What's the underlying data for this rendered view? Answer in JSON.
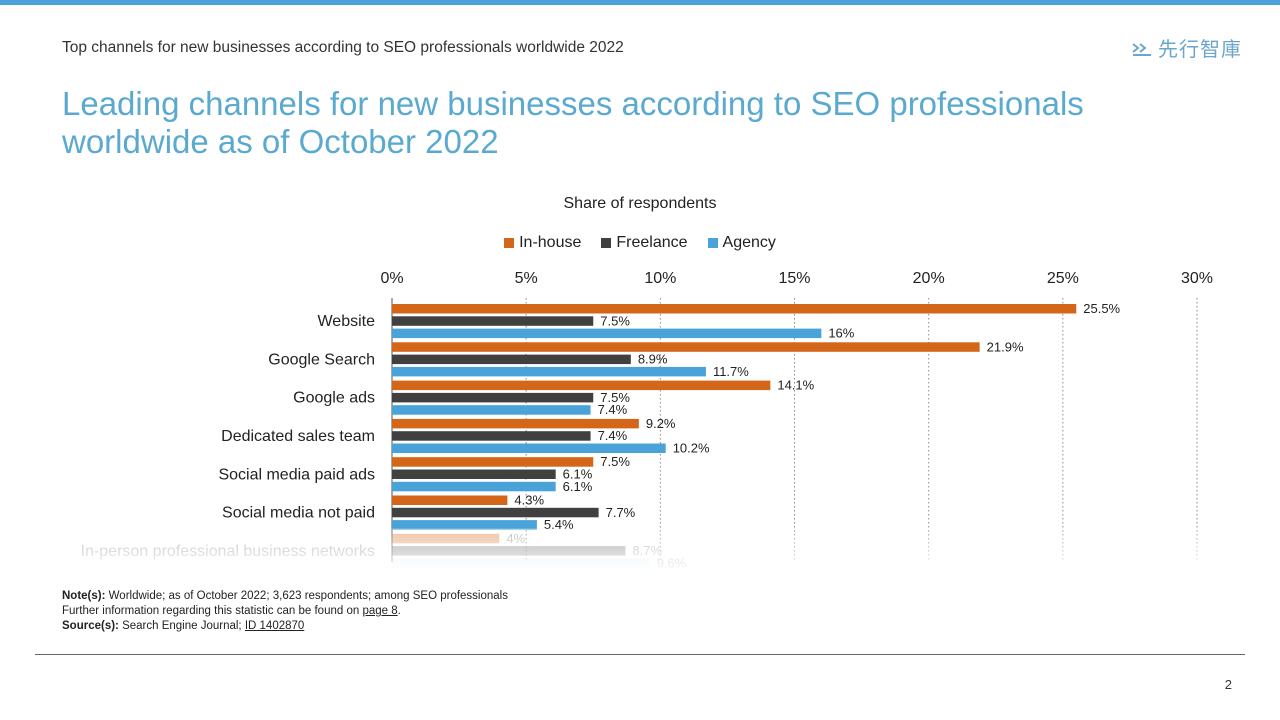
{
  "header": {
    "subtitle": "Top channels for new businesses according to SEO professionals worldwide 2022",
    "brand_text": "先行智庫",
    "brand_logo_icon": "brand-logo-icon",
    "title": "Leading channels for new businesses according to SEO professionals worldwide as of October 2022"
  },
  "chart_data": {
    "type": "bar",
    "orientation": "horizontal",
    "title": "Share of respondents",
    "categories": [
      "Website",
      "Google Search",
      "Google ads",
      "Dedicated sales team",
      "Social media paid ads",
      "Social media not paid",
      "In-person professional business networks"
    ],
    "series": [
      {
        "name": "In-house",
        "color": "#d4661a",
        "values": [
          25.5,
          21.9,
          14.1,
          9.2,
          7.5,
          4.3,
          4
        ],
        "labels": [
          "25.5%",
          "21.9%",
          "14.1%",
          "9.2%",
          "7.5%",
          "4.3%",
          "4%"
        ]
      },
      {
        "name": "Freelance",
        "color": "#404040",
        "values": [
          7.5,
          8.9,
          7.5,
          7.4,
          6.1,
          7.7,
          8.7
        ],
        "labels": [
          "7.5%",
          "8.9%",
          "7.5%",
          "7.4%",
          "6.1%",
          "7.7%",
          "8.7%"
        ]
      },
      {
        "name": "Agency",
        "color": "#4aa3d8",
        "values": [
          16,
          11.7,
          7.4,
          10.2,
          6.1,
          5.4,
          9.6
        ],
        "labels": [
          "16%",
          "11.7%",
          "7.4%",
          "10.2%",
          "6.1%",
          "5.4%",
          "9.6%"
        ]
      }
    ],
    "xlim": [
      0,
      30
    ],
    "xticks": [
      "0%",
      "5%",
      "10%",
      "15%",
      "20%",
      "25%",
      "30%"
    ],
    "grid": true,
    "legend_position": "top-center"
  },
  "notes": {
    "note_label": "Note(s):",
    "note_text": "Worldwide; as of October 2022; 3,623 respondents; among SEO professionals",
    "further_text": "Further information regarding this statistic can be found on",
    "further_link": "page 8",
    "further_end": ".",
    "source_label": "Source(s):",
    "source_text": "Search Engine Journal;",
    "source_link": "ID 1402870"
  },
  "footer": {
    "page_number": "2"
  }
}
